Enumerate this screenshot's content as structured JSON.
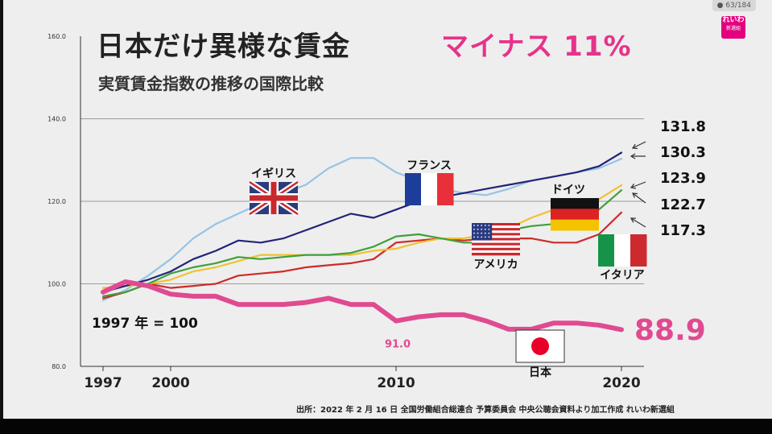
{
  "header": {
    "title": "日本だけ異様な賃金",
    "title_accent": "マイナス 11%",
    "subtitle": "実質賃金指数の推移の国際比較",
    "page_counter": "63/184",
    "logo_text": "れいわ",
    "logo_subtext": "新選組"
  },
  "footer": {
    "source": "出所：2022 年 2 月 16 日 全国労働組合総連合 予算委員会 中央公聴会資料より加工作成 れいわ新選組"
  },
  "colors": {
    "japan": "#e04a90",
    "usa": "#23237a",
    "uk": "#95c4e6",
    "france": "#3fa03a",
    "germany": "#eec232",
    "italy": "#cf2a28",
    "accent": "#e6338a"
  },
  "chart_data": {
    "type": "line",
    "title": "実質賃金指数の推移の国際比較",
    "xlabel": "",
    "ylabel": "",
    "ylim": [
      80,
      160
    ],
    "xlim": [
      1996,
      2021
    ],
    "x_ticks": [
      "1997",
      "2000",
      "2010",
      "2020"
    ],
    "x_tick_values": [
      1997,
      2000,
      2010,
      2020
    ],
    "y_ticks": [
      "80.0",
      "100.0",
      "120.0",
      "140.0",
      "160.0"
    ],
    "y_tick_values": [
      80,
      100,
      120,
      140,
      160
    ],
    "grid": "horizontal",
    "base_note": "1997 年 = 100",
    "series": [
      {
        "key": "usa",
        "name": "アメリカ",
        "end_value": "131.8",
        "flag": "usa",
        "x": [
          1997,
          1998,
          1999,
          2000,
          2001,
          2002,
          2003,
          2004,
          2005,
          2006,
          2007,
          2008,
          2009,
          2010,
          2011,
          2012,
          2013,
          2014,
          2015,
          2016,
          2017,
          2018,
          2019,
          2020
        ],
        "y": [
          98,
          99.5,
          101,
          103,
          106,
          108,
          110.5,
          110,
          111,
          113,
          115,
          117,
          116,
          118,
          120,
          121,
          122,
          123,
          124,
          125,
          126,
          127,
          128.5,
          131.8
        ]
      },
      {
        "key": "uk",
        "name": "イギリス",
        "end_value": "130.3",
        "flag": "uk",
        "x": [
          1997,
          1998,
          1999,
          2000,
          2001,
          2002,
          2003,
          2004,
          2005,
          2006,
          2007,
          2008,
          2009,
          2010,
          2011,
          2012,
          2013,
          2014,
          2015,
          2016,
          2017,
          2018,
          2019,
          2020
        ],
        "y": [
          96,
          98.5,
          102,
          106,
          111,
          114.5,
          117,
          119.5,
          122,
          124,
          128,
          130.5,
          130.5,
          127,
          125,
          123,
          122,
          121.5,
          123,
          125,
          126,
          127,
          128,
          130.3
        ]
      },
      {
        "key": "germany",
        "name": "ドイツ",
        "end_value": "123.9",
        "flag": "germany",
        "x": [
          1997,
          1998,
          1999,
          2000,
          2001,
          2002,
          2003,
          2004,
          2005,
          2006,
          2007,
          2008,
          2009,
          2010,
          2011,
          2012,
          2013,
          2014,
          2015,
          2016,
          2017,
          2018,
          2019,
          2020
        ],
        "y": [
          99,
          99.5,
          100,
          101,
          103,
          104,
          105.5,
          107,
          107,
          107,
          107,
          107,
          108,
          108.5,
          110,
          111,
          111,
          112,
          113.5,
          116,
          118,
          119,
          120.5,
          123.9
        ]
      },
      {
        "key": "france",
        "name": "フランス",
        "end_value": "122.7",
        "flag": "france",
        "x": [
          1997,
          1998,
          1999,
          2000,
          2001,
          2002,
          2003,
          2004,
          2005,
          2006,
          2007,
          2008,
          2009,
          2010,
          2011,
          2012,
          2013,
          2014,
          2015,
          2016,
          2017,
          2018,
          2019,
          2020
        ],
        "y": [
          97,
          98,
          100,
          102.5,
          104,
          105,
          106.5,
          106,
          106.5,
          107,
          107,
          107.5,
          109,
          111.5,
          112,
          111,
          110,
          110,
          113,
          114,
          114.5,
          115,
          118,
          122.7
        ]
      },
      {
        "key": "italy",
        "name": "イタリア",
        "end_value": "117.3",
        "flag": "italy",
        "x": [
          1997,
          1998,
          1999,
          2000,
          2001,
          2002,
          2003,
          2004,
          2005,
          2006,
          2007,
          2008,
          2009,
          2010,
          2011,
          2012,
          2013,
          2014,
          2015,
          2016,
          2017,
          2018,
          2019,
          2020
        ],
        "y": [
          96.5,
          98,
          100,
          99,
          99.5,
          100,
          102,
          102.5,
          103,
          104,
          104.5,
          105,
          106,
          110,
          110.5,
          111,
          110.5,
          111,
          111,
          111,
          110,
          110,
          112,
          117.3
        ]
      },
      {
        "key": "japan",
        "name": "日本",
        "end_value": "88.9",
        "flag": "japan",
        "annotation_label": "91.0",
        "annotation_x": 2010,
        "annotation_y": 91.0,
        "x": [
          1997,
          1998,
          1999,
          2000,
          2001,
          2002,
          2003,
          2004,
          2005,
          2006,
          2007,
          2008,
          2009,
          2010,
          2011,
          2012,
          2013,
          2014,
          2015,
          2016,
          2017,
          2018,
          2019,
          2020
        ],
        "y": [
          98,
          100.5,
          99.5,
          97.5,
          97,
          97,
          95,
          95,
          95,
          95.5,
          96.5,
          95,
          95,
          91,
          92,
          92.5,
          92.5,
          91,
          89,
          89,
          90.5,
          90.5,
          90,
          88.9
        ]
      }
    ]
  }
}
